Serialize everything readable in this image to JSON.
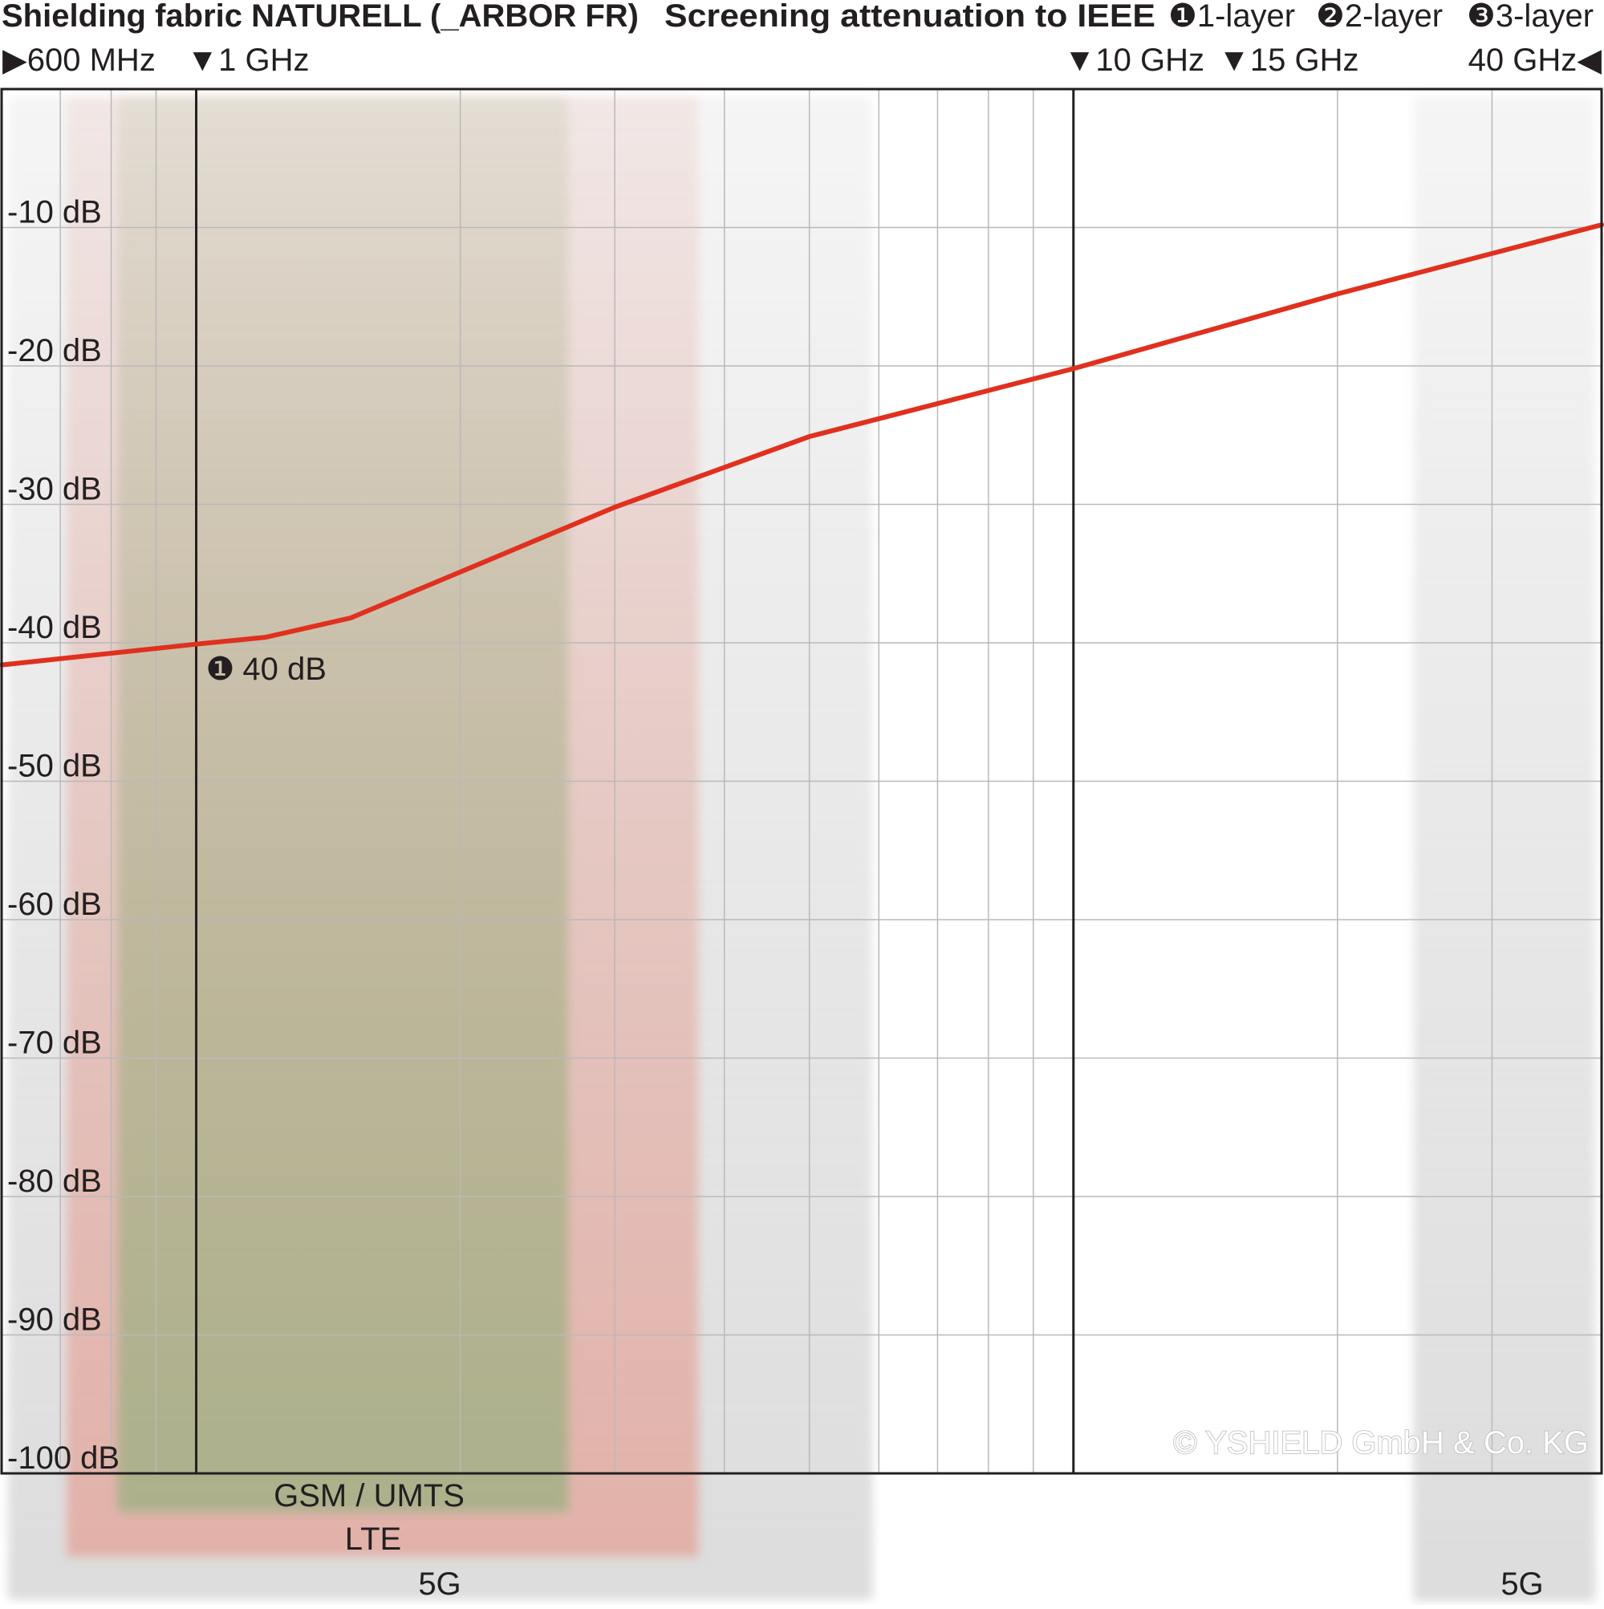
{
  "header": {
    "left_title": "Shielding fabric NATURELL (_ARBOR FR)",
    "right_title": "Screening attenuation to IEEE",
    "legend": [
      {
        "marker": "❶",
        "label": "1-layer"
      },
      {
        "marker": "❷",
        "label": "2-layer"
      },
      {
        "marker": "❸",
        "label": "3-layer"
      }
    ]
  },
  "chart_data": {
    "type": "line",
    "x_scale": "log",
    "x_unit": "GHz",
    "xlim": [
      0.6,
      40
    ],
    "ylim": [
      0,
      -100
    ],
    "yticks": [
      {
        "value": -10,
        "label": "-10 dB"
      },
      {
        "value": -20,
        "label": "-20 dB"
      },
      {
        "value": -30,
        "label": "-30 dB"
      },
      {
        "value": -40,
        "label": "-40 dB"
      },
      {
        "value": -50,
        "label": "-50 dB"
      },
      {
        "value": -60,
        "label": "-60 dB"
      },
      {
        "value": -70,
        "label": "-70 dB"
      },
      {
        "value": -80,
        "label": "-80 dB"
      },
      {
        "value": -90,
        "label": "-90 dB"
      },
      {
        "value": -100,
        "label": "-100 dB"
      }
    ],
    "xmarkers": [
      {
        "value": 0.6,
        "label": "600 MHz",
        "marker": "▶"
      },
      {
        "value": 1,
        "label": "1 GHz",
        "marker": "▼"
      },
      {
        "value": 10,
        "label": "10 GHz",
        "marker": "▼"
      },
      {
        "value": 15,
        "label": "15 GHz",
        "marker": "▼"
      },
      {
        "value": 40,
        "label": "40 GHz",
        "marker": "◀"
      }
    ],
    "series": [
      {
        "color": "#e0301e",
        "points": [
          {
            "x": 0.6,
            "y": -41.6
          },
          {
            "x": 1.0,
            "y": -40.1
          },
          {
            "x": 1.2,
            "y": -39.6
          },
          {
            "x": 1.5,
            "y": -38.2
          },
          {
            "x": 3.0,
            "y": -30.2
          },
          {
            "x": 5.0,
            "y": -25.1
          },
          {
            "x": 10.0,
            "y": -20.2
          },
          {
            "x": 20.0,
            "y": -14.8
          },
          {
            "x": 40.0,
            "y": -9.8
          }
        ]
      }
    ],
    "annotations": [
      {
        "x": 1.0,
        "y": -40,
        "marker": "❶",
        "text": "40 dB"
      }
    ],
    "bands": [
      {
        "name": "GSM / UMTS",
        "x_from": 0.8,
        "x_to": 2.7,
        "color": "#a9b18a"
      },
      {
        "name": "LTE",
        "x_from": 0.7,
        "x_to": 3.8,
        "color": "#e3aaa0"
      },
      {
        "name": "5G",
        "x_from": 0.6,
        "x_to": 6.0,
        "color": "#d6d6d6"
      },
      {
        "name": "5G",
        "x_from": 24.0,
        "x_to": 40.0,
        "color": "#d6d6d6"
      }
    ],
    "grid": true,
    "watermark": "© YSHIELD GmbH & Co. KG"
  }
}
